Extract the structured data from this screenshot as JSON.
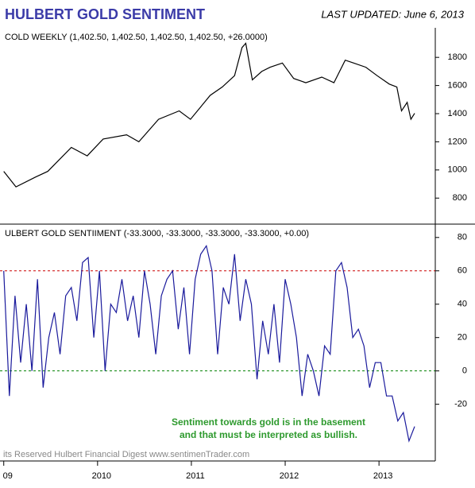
{
  "header": {
    "title": "HULBERT GOLD SENTIMENT",
    "updated": "LAST UPDATED:  June 6, 2013"
  },
  "chart_data": [
    {
      "type": "line",
      "label": "COLD WEEKLY (1,402.50, 1,402.50, 1,402.50, 1,402.50, +26.0000)",
      "xlim": [
        2008.96,
        2013.6
      ],
      "ylim": [
        615,
        2010
      ],
      "yticks": [
        800,
        1000,
        1200,
        1400,
        1600,
        1800
      ],
      "series": [
        {
          "name": "COLD WEEKLY",
          "color": "#000000",
          "x": [
            2009.0,
            2009.13,
            2009.34,
            2009.47,
            2009.72,
            2009.89,
            2010.06,
            2010.31,
            2010.44,
            2010.65,
            2010.87,
            2010.99,
            2011.2,
            2011.33,
            2011.46,
            2011.54,
            2011.58,
            2011.65,
            2011.75,
            2011.84,
            2011.97,
            2012.09,
            2012.22,
            2012.39,
            2012.52,
            2012.64,
            2012.73,
            2012.86,
            2012.98,
            2013.11,
            2013.19,
            2013.24,
            2013.3,
            2013.34,
            2013.38
          ],
          "values": [
            990,
            880,
            950,
            990,
            1160,
            1100,
            1220,
            1250,
            1200,
            1360,
            1420,
            1360,
            1530,
            1590,
            1670,
            1870,
            1900,
            1640,
            1700,
            1730,
            1760,
            1650,
            1620,
            1660,
            1620,
            1780,
            1760,
            1730,
            1670,
            1610,
            1590,
            1420,
            1480,
            1360,
            1402.5
          ]
        }
      ]
    },
    {
      "type": "line",
      "label": "ULBERT GOLD SENTIIMENT (-33.3000, -33.3000, -33.3000, -33.3000, +0.00)",
      "xlim": [
        2008.96,
        2013.6
      ],
      "ylim": [
        -54,
        88
      ],
      "yticks": [
        -20,
        0,
        20,
        40,
        60,
        80
      ],
      "xticks": [
        {
          "value": 2009,
          "label": "09"
        },
        2010,
        2011,
        2012,
        2013
      ],
      "reference_lines": [
        {
          "value": 60,
          "color": "#cc0000"
        },
        {
          "value": 0,
          "color": "#008000"
        }
      ],
      "annotation": [
        "Sentiment towards gold is in the basement",
        "and that must be interpreted as bullish."
      ],
      "footer": "its Reserved  Hulbert Financial Digest  www.sentimenTrader.com",
      "series": [
        {
          "name": "HULBERT GOLD SENTIIMENT",
          "color": "#1a1a9c",
          "x": [
            2009,
            2009.06,
            2009.12,
            2009.18,
            2009.24,
            2009.3,
            2009.36,
            2009.42,
            2009.48,
            2009.54,
            2009.6,
            2009.66,
            2009.72,
            2009.78,
            2009.84,
            2009.9,
            2009.96,
            2010.02,
            2010.08,
            2010.14,
            2010.2,
            2010.26,
            2010.32,
            2010.38,
            2010.44,
            2010.5,
            2010.56,
            2010.62,
            2010.68,
            2010.74,
            2010.8,
            2010.86,
            2010.92,
            2010.98,
            2011.04,
            2011.1,
            2011.16,
            2011.22,
            2011.28,
            2011.34,
            2011.4,
            2011.46,
            2011.52,
            2011.58,
            2011.64,
            2011.7,
            2011.76,
            2011.82,
            2011.88,
            2011.94,
            2012,
            2012.06,
            2012.12,
            2012.18,
            2012.24,
            2012.3,
            2012.36,
            2012.42,
            2012.48,
            2012.54,
            2012.6,
            2012.66,
            2012.72,
            2012.78,
            2012.84,
            2012.9,
            2012.96,
            2013.02,
            2013.08,
            2013.14,
            2013.2,
            2013.26,
            2013.32,
            2013.38
          ],
          "values": [
            60,
            -15,
            45,
            5,
            40,
            0,
            55,
            -10,
            20,
            35,
            10,
            45,
            50,
            30,
            65,
            68,
            20,
            60,
            0,
            40,
            35,
            55,
            30,
            45,
            20,
            60,
            40,
            10,
            45,
            55,
            60,
            25,
            50,
            10,
            55,
            70,
            75,
            60,
            10,
            50,
            40,
            70,
            30,
            55,
            40,
            -5,
            30,
            10,
            40,
            5,
            55,
            40,
            20,
            -15,
            10,
            0,
            -15,
            15,
            10,
            60,
            65,
            50,
            20,
            25,
            15,
            -10,
            5,
            5,
            -15,
            -15,
            -30,
            -25,
            -42,
            -33.3
          ]
        }
      ]
    }
  ]
}
